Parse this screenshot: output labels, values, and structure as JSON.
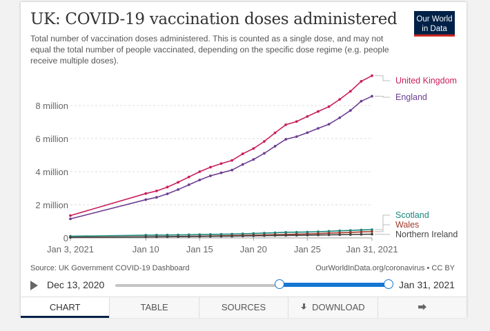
{
  "header": {
    "title": "UK: COVID-19 vaccination doses administered",
    "subtitle": "Total number of vaccination doses administered. This is counted as a single dose, and may not equal the total number of people vaccinated, depending on the specific dose regime (e.g. people receive multiple doses).",
    "logo_line1": "Our World",
    "logo_line2": "in Data"
  },
  "footer": {
    "source": "Source: UK Government COVID-19 Dashboard",
    "license": "OurWorldInData.org/coronavirus • CC BY"
  },
  "timeline": {
    "start_label": "Dec 13, 2020",
    "end_label": "Jan 31, 2021",
    "play_icon": "play-icon",
    "selection_start_fraction": 0.6,
    "selection_end_fraction": 1.0
  },
  "tabs": [
    {
      "label": "CHART",
      "active": true
    },
    {
      "label": "TABLE",
      "active": false
    },
    {
      "label": "SOURCES",
      "active": false
    },
    {
      "label": "DOWNLOAD",
      "active": false,
      "icon": "download-icon"
    },
    {
      "label": "",
      "active": false,
      "icon": "share-icon"
    }
  ],
  "colors": {
    "uk": "#c91d5c",
    "england": "#6d3e91",
    "scotland": "#18877a",
    "wales": "#a2392a",
    "northern_ireland": "#444444",
    "logo_bg": "#002147",
    "accent": "#1676d2"
  },
  "chart_data": {
    "type": "line",
    "xlabel": "",
    "ylabel": "",
    "x_range": [
      "2021-01-03",
      "2021-01-31"
    ],
    "ylim": [
      0,
      10000000
    ],
    "x_ticks": [
      {
        "date": "2021-01-03",
        "label": "Jan 3, 2021"
      },
      {
        "date": "2021-01-10",
        "label": "Jan 10"
      },
      {
        "date": "2021-01-15",
        "label": "Jan 15"
      },
      {
        "date": "2021-01-20",
        "label": "Jan 20"
      },
      {
        "date": "2021-01-25",
        "label": "Jan 25"
      },
      {
        "date": "2021-01-31",
        "label": "Jan 31, 2021"
      }
    ],
    "y_ticks": [
      {
        "value": 0,
        "label": "0"
      },
      {
        "value": 2000000,
        "label": "2 million"
      },
      {
        "value": 4000000,
        "label": "4 million"
      },
      {
        "value": 6000000,
        "label": "6 million"
      },
      {
        "value": 8000000,
        "label": "8 million"
      }
    ],
    "grid": "horizontal-dashed",
    "series": [
      {
        "name": "United Kingdom",
        "color_key": "uk",
        "x": [
          "2021-01-03",
          "2021-01-10",
          "2021-01-11",
          "2021-01-12",
          "2021-01-13",
          "2021-01-14",
          "2021-01-15",
          "2021-01-16",
          "2021-01-17",
          "2021-01-18",
          "2021-01-19",
          "2021-01-20",
          "2021-01-21",
          "2021-01-22",
          "2021-01-23",
          "2021-01-24",
          "2021-01-25",
          "2021-01-26",
          "2021-01-27",
          "2021-01-28",
          "2021-01-29",
          "2021-01-30",
          "2021-01-31"
        ],
        "y": [
          1350000,
          2680000,
          2840000,
          3070000,
          3360000,
          3680000,
          4000000,
          4270000,
          4490000,
          4680000,
          5080000,
          5400000,
          5830000,
          6350000,
          6840000,
          7030000,
          7340000,
          7640000,
          7930000,
          8370000,
          8860000,
          9460000,
          9800000
        ]
      },
      {
        "name": "England",
        "color_key": "england",
        "x": [
          "2021-01-03",
          "2021-01-10",
          "2021-01-11",
          "2021-01-12",
          "2021-01-13",
          "2021-01-14",
          "2021-01-15",
          "2021-01-16",
          "2021-01-17",
          "2021-01-18",
          "2021-01-19",
          "2021-01-20",
          "2021-01-21",
          "2021-01-22",
          "2021-01-23",
          "2021-01-24",
          "2021-01-25",
          "2021-01-26",
          "2021-01-27",
          "2021-01-28",
          "2021-01-29",
          "2021-01-30",
          "2021-01-31"
        ],
        "y": [
          1150000,
          2310000,
          2450000,
          2660000,
          2920000,
          3210000,
          3500000,
          3750000,
          3930000,
          4100000,
          4440000,
          4740000,
          5110000,
          5540000,
          5960000,
          6120000,
          6360000,
          6620000,
          6870000,
          7260000,
          7700000,
          8260000,
          8560000
        ]
      },
      {
        "name": "Scotland",
        "color_key": "scotland",
        "x": [
          "2021-01-03",
          "2021-01-10",
          "2021-01-11",
          "2021-01-12",
          "2021-01-13",
          "2021-01-14",
          "2021-01-15",
          "2021-01-16",
          "2021-01-17",
          "2021-01-18",
          "2021-01-19",
          "2021-01-20",
          "2021-01-21",
          "2021-01-22",
          "2021-01-23",
          "2021-01-24",
          "2021-01-25",
          "2021-01-26",
          "2021-01-27",
          "2021-01-28",
          "2021-01-29",
          "2021-01-30",
          "2021-01-31"
        ],
        "y": [
          100000,
          165000,
          170000,
          175000,
          180000,
          191000,
          200000,
          210000,
          220000,
          230000,
          250000,
          270000,
          290000,
          310000,
          340000,
          345000,
          355000,
          375000,
          400000,
          430000,
          450000,
          480000,
          500000
        ]
      },
      {
        "name": "Wales",
        "color_key": "wales",
        "x": [
          "2021-01-03",
          "2021-01-10",
          "2021-01-11",
          "2021-01-12",
          "2021-01-13",
          "2021-01-14",
          "2021-01-15",
          "2021-01-16",
          "2021-01-17",
          "2021-01-18",
          "2021-01-19",
          "2021-01-20",
          "2021-01-21",
          "2021-01-22",
          "2021-01-23",
          "2021-01-24",
          "2021-01-25",
          "2021-01-26",
          "2021-01-27",
          "2021-01-28",
          "2021-01-29",
          "2021-01-30",
          "2021-01-31"
        ],
        "y": [
          35000,
          70000,
          75000,
          80000,
          86000,
          97000,
          107000,
          115000,
          126000,
          137000,
          152000,
          166000,
          180000,
          195000,
          210000,
          225000,
          240000,
          265000,
          290000,
          310000,
          330000,
          360000,
          380000
        ]
      },
      {
        "name": "Northern Ireland",
        "color_key": "northern_ireland",
        "x": [
          "2021-01-03",
          "2021-01-10",
          "2021-01-11",
          "2021-01-12",
          "2021-01-13",
          "2021-01-14",
          "2021-01-15",
          "2021-01-16",
          "2021-01-17",
          "2021-01-18",
          "2021-01-19",
          "2021-01-20",
          "2021-01-21",
          "2021-01-22",
          "2021-01-23",
          "2021-01-24",
          "2021-01-25",
          "2021-01-26",
          "2021-01-27",
          "2021-01-28",
          "2021-01-29",
          "2021-01-30",
          "2021-01-31"
        ],
        "y": [
          30000,
          60000,
          65000,
          70000,
          74000,
          80000,
          88000,
          95000,
          100000,
          105000,
          115000,
          125000,
          135000,
          145000,
          150000,
          155000,
          165000,
          175000,
          185000,
          195000,
          205000,
          215000,
          225000
        ]
      }
    ]
  }
}
